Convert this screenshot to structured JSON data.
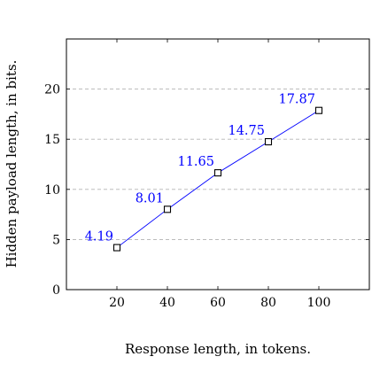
{
  "chart_data": {
    "type": "line",
    "title": "",
    "xlabel": "Response length, in tokens.",
    "ylabel": "Hidden payload length, in bits.",
    "xlim": [
      0,
      120
    ],
    "ylim": [
      0,
      25
    ],
    "xticks": [
      20,
      40,
      60,
      80,
      100
    ],
    "yticks": [
      0,
      5,
      10,
      15,
      20
    ],
    "grid": "horizontal dashed",
    "legend": "none",
    "series": [
      {
        "x": [
          20,
          40,
          60,
          80,
          100
        ],
        "values": [
          4.19,
          8.01,
          11.65,
          14.75,
          17.87
        ],
        "data_labels": [
          "4.19",
          "8.01",
          "11.65",
          "14.75",
          "17.87"
        ],
        "color": "#0000ff",
        "marker": "open-square"
      }
    ]
  }
}
